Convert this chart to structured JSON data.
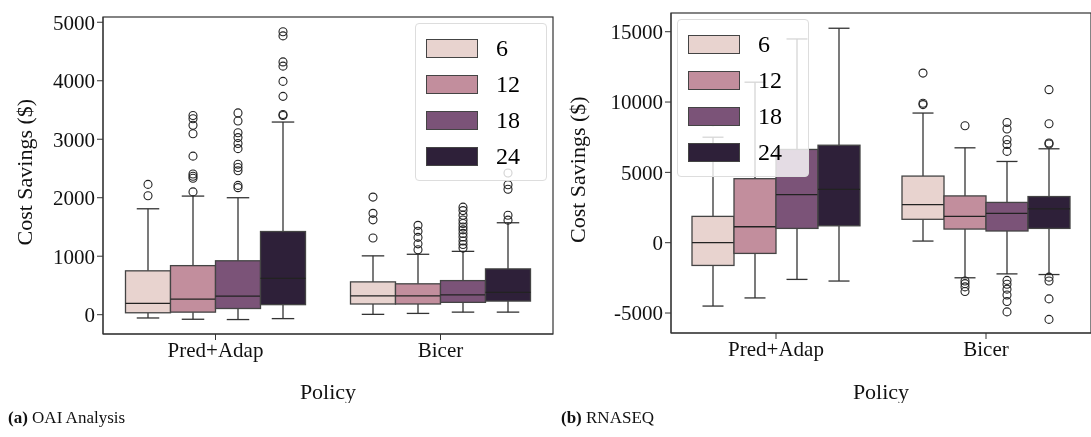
{
  "chart_data": [
    {
      "type": "box",
      "xlabel": "Policy",
      "ylabel": "Cost Savings ($)",
      "categories": [
        "Pred+Adap",
        "Bicer"
      ],
      "ylim": [
        -330,
        5090
      ],
      "yticks": [
        0,
        1000,
        2000,
        3000,
        4000,
        5000
      ],
      "legend": "top right",
      "annotations": [
        "(a) OAI Analysis"
      ],
      "series": [
        {
          "name": "6",
          "color": "#e8d3cf",
          "boxes": [
            {
              "low": -56,
              "q1": 33,
              "median": 194,
              "q3": 750,
              "high": 1811,
              "outliers": [
                2033,
                2228
              ]
            },
            {
              "low": 6,
              "q1": 183,
              "median": 322,
              "q3": 561,
              "high": 1006,
              "outliers": [
                1311,
                1622,
                1733,
                2011
              ]
            }
          ]
        },
        {
          "name": "12",
          "color": "#c28e9d",
          "boxes": [
            {
              "low": -78,
              "q1": 44,
              "median": 267,
              "q3": 839,
              "high": 2028,
              "outliers": [
                2100,
                2333,
                2367,
                2406,
                2711,
                3094,
                3239,
                3350,
                3406
              ]
            },
            {
              "low": 22,
              "q1": 183,
              "median": 322,
              "q3": 528,
              "high": 1033,
              "outliers": [
                1111,
                1211,
                1322,
                1428,
                1528
              ]
            }
          ]
        },
        {
          "name": "18",
          "color": "#7b5378",
          "boxes": [
            {
              "low": -83,
              "q1": 106,
              "median": 317,
              "q3": 922,
              "high": 2000,
              "outliers": [
                2172,
                2211,
                2461,
                2517,
                2572,
                2839,
                2928,
                3028,
                3111,
                3311,
                3450
              ]
            },
            {
              "low": 44,
              "q1": 211,
              "median": 339,
              "q3": 583,
              "high": 1083,
              "outliers": [
                1139,
                1200,
                1260,
                1330,
                1390,
                1450,
                1500,
                1560,
                1620,
                1700,
                1780,
                1839
              ]
            }
          ]
        },
        {
          "name": "24",
          "color": "#2e2039",
          "boxes": [
            {
              "low": -67,
              "q1": 172,
              "median": 622,
              "q3": 1422,
              "high": 3294,
              "outliers": [
                3406,
                3422,
                3733,
                3989,
                4250,
                4322,
                4767,
                4839
              ]
            },
            {
              "low": 44,
              "q1": 233,
              "median": 383,
              "q3": 783,
              "high": 1572,
              "outliers": [
                1617,
                1700,
                2144,
                2222,
                2422
              ]
            }
          ]
        }
      ]
    },
    {
      "type": "box",
      "xlabel": "Policy",
      "ylabel": "Cost Savings ($)",
      "categories": [
        "Pred+Adap",
        "Bicer"
      ],
      "ylim": [
        -6420,
        16330
      ],
      "yticks": [
        -5000,
        0,
        5000,
        10000,
        15000
      ],
      "legend": "top left",
      "annotations": [
        "(b) RNASEQ"
      ],
      "series": [
        {
          "name": "6",
          "color": "#e8d3cf",
          "boxes": [
            {
              "low": -4505,
              "q1": -1617,
              "median": 0,
              "q3": 1871,
              "high": 7500,
              "outliers": [
                8600
              ]
            },
            {
              "low": 116,
              "q1": 1663,
              "median": 2703,
              "q3": 4736,
              "high": 9217,
              "outliers": [
                9818,
                9910,
                12058
              ]
            }
          ]
        },
        {
          "name": "12",
          "color": "#c28e9d",
          "boxes": [
            {
              "low": -3927,
              "q1": -762,
              "median": 1132,
              "q3": 4551,
              "high": 11411
            },
            {
              "low": -2495,
              "q1": 970,
              "median": 1871,
              "q3": 3326,
              "high": 6745,
              "outliers": [
                8316,
                -2726,
                -2911,
                -3142,
                -3465
              ]
            }
          ]
        },
        {
          "name": "18",
          "color": "#7b5378",
          "boxes": [
            {
              "low": -2610,
              "q1": 1016,
              "median": 3419,
              "q3": 6630,
              "high": 14484
            },
            {
              "low": -2218,
              "q1": 832,
              "median": 2079,
              "q3": 2864,
              "high": 5775,
              "outliers": [
                6491,
                6976,
                7323,
                8085,
                8547,
                -2680,
                -2957,
                -3303,
                -3719,
                -4181,
                -4920
              ]
            }
          ]
        },
        {
          "name": "24",
          "color": "#2e2039",
          "boxes": [
            {
              "low": -2726,
              "q1": 1201,
              "median": 3788,
              "q3": 6930,
              "high": 15246
            },
            {
              "low": -2264,
              "q1": 1016,
              "median": 2402,
              "q3": 3280,
              "high": 6676,
              "outliers": [
                7022,
                7092,
                8455,
                10880,
                -2449,
                -2726,
                -3996,
                -5452
              ]
            }
          ]
        }
      ]
    }
  ]
}
